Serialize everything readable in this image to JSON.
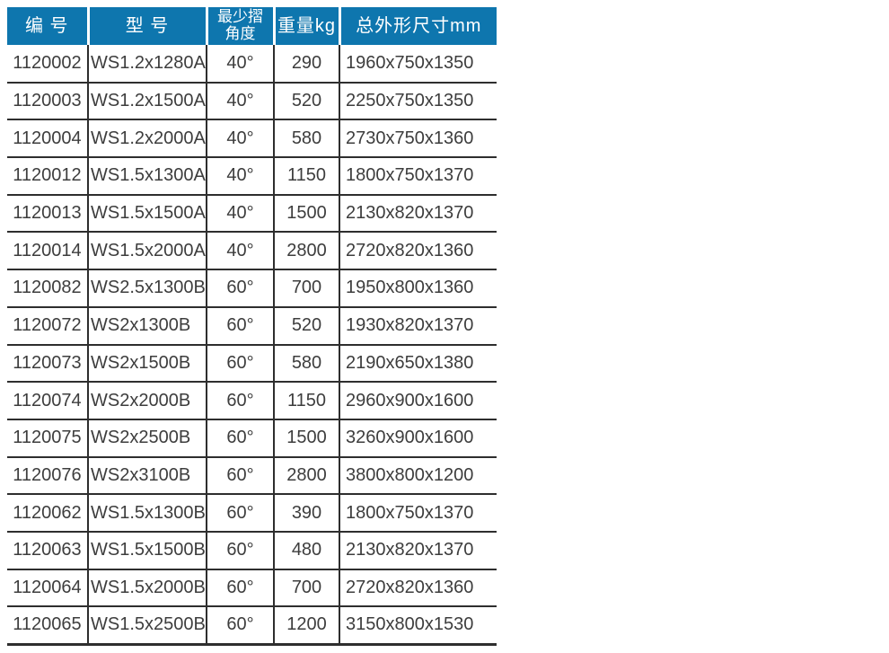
{
  "colors": {
    "header_bg": "#0e76ae",
    "header_text": "#ffffff",
    "body_text": "#3d3d3d",
    "grid_line": "#2e2e2e"
  },
  "table": {
    "columns": [
      "编 号",
      "型 号",
      "最少摺\n角度",
      "重量kg",
      "总外形尺寸mm"
    ],
    "rows": [
      {
        "code": "1120002",
        "model": "WS1.2x1280A",
        "min_fold_angle": "40°",
        "weight_kg": "290",
        "overall_dimensions_mm": "1960x750x1350"
      },
      {
        "code": "1120003",
        "model": "WS1.2x1500A",
        "min_fold_angle": "40°",
        "weight_kg": "520",
        "overall_dimensions_mm": "2250x750x1350"
      },
      {
        "code": "1120004",
        "model": "WS1.2x2000A",
        "min_fold_angle": "40°",
        "weight_kg": "580",
        "overall_dimensions_mm": "2730x750x1360"
      },
      {
        "code": "1120012",
        "model": "WS1.5x1300A",
        "min_fold_angle": "40°",
        "weight_kg": "1150",
        "overall_dimensions_mm": "1800x750x1370"
      },
      {
        "code": "1120013",
        "model": "WS1.5x1500A",
        "min_fold_angle": "40°",
        "weight_kg": "1500",
        "overall_dimensions_mm": "2130x820x1370"
      },
      {
        "code": "1120014",
        "model": "WS1.5x2000A",
        "min_fold_angle": "40°",
        "weight_kg": "2800",
        "overall_dimensions_mm": "2720x820x1360"
      },
      {
        "code": "1120082",
        "model": "WS2.5x1300B",
        "min_fold_angle": "60°",
        "weight_kg": "700",
        "overall_dimensions_mm": "1950x800x1360"
      },
      {
        "code": "1120072",
        "model": "WS2x1300B",
        "min_fold_angle": "60°",
        "weight_kg": "520",
        "overall_dimensions_mm": "1930x820x1370"
      },
      {
        "code": "1120073",
        "model": "WS2x1500B",
        "min_fold_angle": "60°",
        "weight_kg": "580",
        "overall_dimensions_mm": "2190x650x1380"
      },
      {
        "code": "1120074",
        "model": "WS2x2000B",
        "min_fold_angle": "60°",
        "weight_kg": "1150",
        "overall_dimensions_mm": "2960x900x1600"
      },
      {
        "code": "1120075",
        "model": "WS2x2500B",
        "min_fold_angle": "60°",
        "weight_kg": "1500",
        "overall_dimensions_mm": "3260x900x1600"
      },
      {
        "code": "1120076",
        "model": "WS2x3100B",
        "min_fold_angle": "60°",
        "weight_kg": "2800",
        "overall_dimensions_mm": "3800x800x1200"
      },
      {
        "code": "1120062",
        "model": "WS1.5x1300B",
        "min_fold_angle": "60°",
        "weight_kg": "390",
        "overall_dimensions_mm": "1800x750x1370"
      },
      {
        "code": "1120063",
        "model": "WS1.5x1500B",
        "min_fold_angle": "60°",
        "weight_kg": "480",
        "overall_dimensions_mm": "2130x820x1370"
      },
      {
        "code": "1120064",
        "model": "WS1.5x2000B",
        "min_fold_angle": "60°",
        "weight_kg": "700",
        "overall_dimensions_mm": "2720x820x1360"
      },
      {
        "code": "1120065",
        "model": "WS1.5x2500B",
        "min_fold_angle": "60°",
        "weight_kg": "1200",
        "overall_dimensions_mm": "3150x800x1530"
      }
    ]
  }
}
